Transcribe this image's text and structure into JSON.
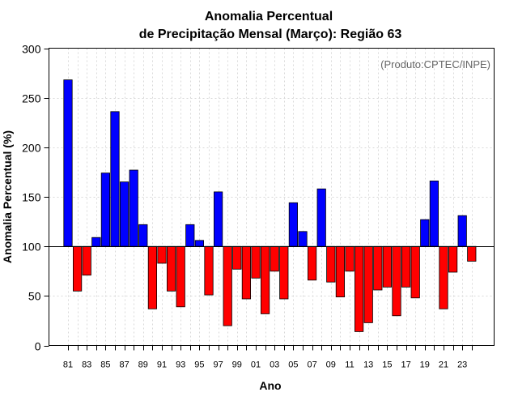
{
  "chart_data": {
    "type": "bar",
    "title_line1": "Anomalia Percentual",
    "title_line2": "de Precipitação Mensal (Março): Região 63",
    "xlabel": "Ano",
    "ylabel": "Anomalia Percentual (%)",
    "credit": "(Produto:CPTEC/INPE)",
    "ylim": [
      0,
      300
    ],
    "yticks": [
      0,
      50,
      100,
      150,
      200,
      250,
      300
    ],
    "baseline": 100,
    "color_above": "#0000ff",
    "color_below": "#ff0000",
    "categories": [
      "81",
      "82",
      "83",
      "84",
      "85",
      "86",
      "87",
      "88",
      "89",
      "90",
      "91",
      "92",
      "93",
      "94",
      "95",
      "96",
      "97",
      "98",
      "99",
      "00",
      "01",
      "02",
      "03",
      "04",
      "05",
      "06",
      "07",
      "08",
      "09",
      "10",
      "11",
      "12",
      "13",
      "14",
      "15",
      "16",
      "17",
      "18",
      "19",
      "20",
      "21",
      "22",
      "23",
      "24"
    ],
    "xticklabels": [
      "81",
      "83",
      "85",
      "87",
      "89",
      "91",
      "93",
      "95",
      "97",
      "99",
      "01",
      "03",
      "05",
      "07",
      "09",
      "11",
      "13",
      "15",
      "17",
      "19",
      "21",
      "23"
    ],
    "values": [
      268,
      55,
      71,
      109,
      174,
      236,
      165,
      177,
      122,
      37,
      83,
      55,
      39,
      122,
      106,
      51,
      155,
      20,
      77,
      47,
      68,
      32,
      75,
      47,
      144,
      115,
      66,
      158,
      64,
      49,
      75,
      14,
      23,
      56,
      59,
      30,
      59,
      48,
      127,
      166,
      37,
      74,
      131,
      85
    ]
  }
}
